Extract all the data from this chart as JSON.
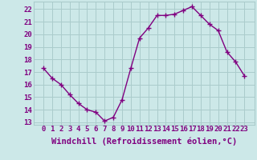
{
  "x": [
    0,
    1,
    2,
    3,
    4,
    5,
    6,
    7,
    8,
    9,
    10,
    11,
    12,
    13,
    14,
    15,
    16,
    17,
    18,
    19,
    20,
    21,
    22,
    23
  ],
  "y": [
    17.3,
    16.5,
    16.0,
    15.2,
    14.5,
    14.0,
    13.8,
    13.1,
    13.4,
    14.8,
    17.3,
    19.7,
    20.5,
    21.5,
    21.5,
    21.6,
    21.9,
    22.2,
    21.5,
    20.8,
    20.3,
    18.6,
    17.8,
    16.7
  ],
  "line_color": "#800080",
  "marker": "+",
  "marker_size": 4,
  "linewidth": 1.0,
  "bg_color": "#cce8e8",
  "grid_color": "#aacccc",
  "xlabel": "Windchill (Refroidissement éolien,°C)",
  "xlabel_fontsize": 7.5,
  "tick_fontsize": 6.5,
  "ylim": [
    12.8,
    22.6
  ],
  "yticks": [
    13,
    14,
    15,
    16,
    17,
    18,
    19,
    20,
    21,
    22
  ],
  "xticks": [
    0,
    1,
    2,
    3,
    4,
    5,
    6,
    7,
    8,
    9,
    10,
    11,
    12,
    13,
    14,
    15,
    16,
    17,
    18,
    19,
    20,
    21,
    22,
    23
  ],
  "label_color": "#800080"
}
